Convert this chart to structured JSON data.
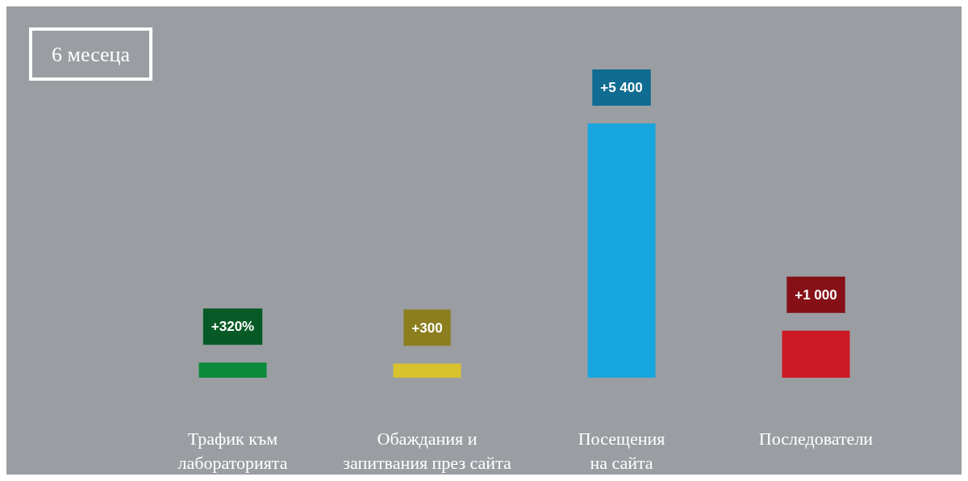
{
  "chart_data": {
    "type": "bar",
    "title": "6 месеца",
    "categories": [
      "Трафик към лабораторията",
      "Обаждания и запитвания през сайта",
      "Посещения на сайта",
      "Последователи"
    ],
    "values": [
      320,
      300,
      5400,
      1000
    ],
    "colors": [
      "#0b8a3a",
      "#d8c22e",
      "#18a6de",
      "#cc1a24"
    ],
    "value_labels": [
      "+320%",
      "+300",
      "+5 400",
      "+1 000"
    ]
  }
}
